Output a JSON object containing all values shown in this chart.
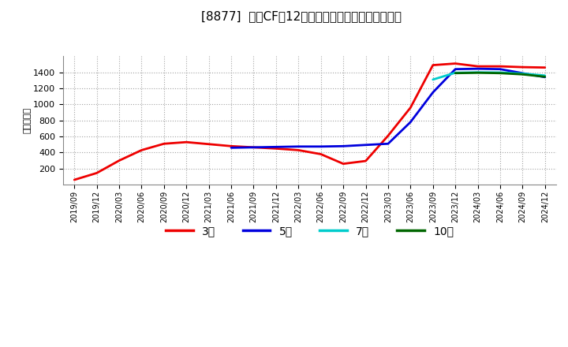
{
  "title": "[8877]  投資CFの12か月移動合計の標準偏差の推移",
  "ylabel": "（百万円）",
  "background_color": "#ffffff",
  "plot_bg_color": "#ffffff",
  "grid_color": "#999999",
  "ylim": [
    0,
    1600
  ],
  "yticks": [
    200,
    400,
    600,
    800,
    1000,
    1200,
    1400
  ],
  "series": {
    "3年": {
      "color": "#ee0000",
      "dates": [
        "2019/09",
        "2019/12",
        "2020/03",
        "2020/06",
        "2020/09",
        "2020/12",
        "2021/03",
        "2021/06",
        "2021/09",
        "2021/12",
        "2022/03",
        "2022/06",
        "2022/09",
        "2022/12",
        "2023/03",
        "2023/06",
        "2023/09",
        "2023/12",
        "2024/03",
        "2024/06",
        "2024/09",
        "2024/12"
      ],
      "values": [
        60,
        145,
        300,
        430,
        510,
        530,
        505,
        480,
        465,
        450,
        430,
        380,
        260,
        295,
        610,
        960,
        1490,
        1510,
        1475,
        1475,
        1465,
        1460
      ]
    },
    "5年": {
      "color": "#0000dd",
      "dates": [
        "2021/06",
        "2021/09",
        "2021/12",
        "2022/03",
        "2022/06",
        "2022/09",
        "2022/12",
        "2023/03",
        "2023/06",
        "2023/09",
        "2023/12",
        "2024/03",
        "2024/06",
        "2024/09",
        "2024/12"
      ],
      "values": [
        460,
        465,
        470,
        475,
        475,
        480,
        495,
        510,
        780,
        1150,
        1440,
        1445,
        1440,
        1390,
        1340
      ]
    },
    "7年": {
      "color": "#00cccc",
      "dates": [
        "2023/09",
        "2023/12",
        "2024/03",
        "2024/06",
        "2024/09",
        "2024/12"
      ],
      "values": [
        1310,
        1395,
        1400,
        1398,
        1385,
        1360
      ]
    },
    "10年": {
      "color": "#006600",
      "dates": [
        "2023/12",
        "2024/03",
        "2024/06",
        "2024/09",
        "2024/12"
      ],
      "values": [
        1390,
        1395,
        1390,
        1375,
        1345
      ]
    }
  },
  "legend_labels": [
    "3年",
    "5年",
    "7年",
    "10年"
  ],
  "legend_colors": [
    "#ee0000",
    "#0000dd",
    "#00cccc",
    "#006600"
  ],
  "x_tick_labels": [
    "2019/09",
    "2019/12",
    "2020/03",
    "2020/06",
    "2020/09",
    "2020/12",
    "2021/03",
    "2021/06",
    "2021/09",
    "2021/12",
    "2022/03",
    "2022/06",
    "2022/09",
    "2022/12",
    "2023/03",
    "2023/06",
    "2023/09",
    "2023/12",
    "2024/03",
    "2024/06",
    "2024/09",
    "2024/12"
  ]
}
